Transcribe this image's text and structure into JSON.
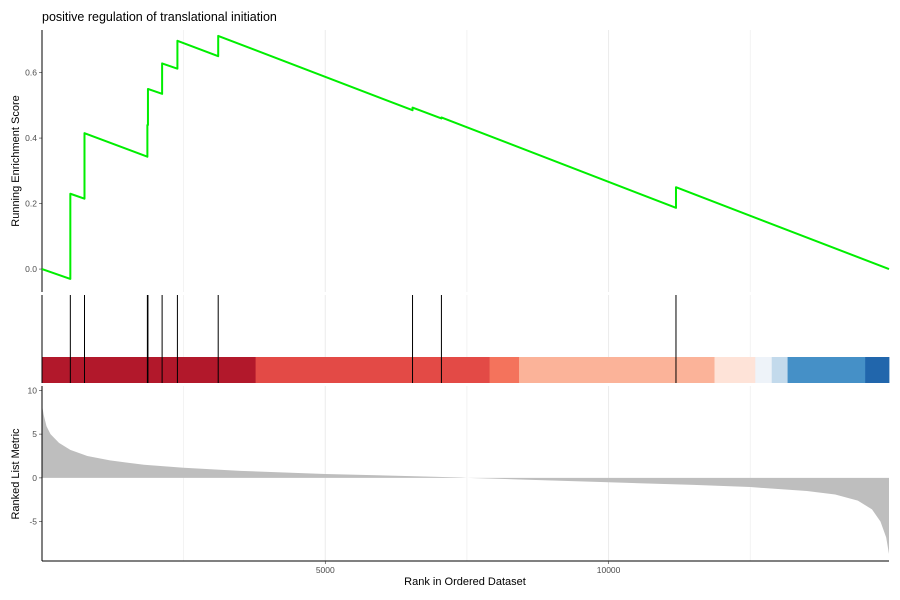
{
  "chart_data": {
    "type": "line",
    "title": "positive regulation of translational initiation",
    "xlabel": "Rank in Ordered Dataset",
    "xlim": [
      0,
      14950
    ],
    "x_ticks": [
      5000,
      10000
    ],
    "x_tick_labels": [
      "5000",
      "10000"
    ],
    "grid": "vertical-only",
    "panels": [
      {
        "name": "running-enrichment",
        "ylabel": "Running Enrichment Score",
        "ylim": [
          -0.07,
          0.73
        ],
        "y_ticks": [
          0.0,
          0.2,
          0.4,
          0.6
        ],
        "y_tick_labels": [
          "0.0",
          "0.2",
          "0.4",
          "0.6"
        ],
        "line_color": "#00ee00",
        "points": [
          [
            0,
            0.0
          ],
          [
            500,
            -0.03
          ],
          [
            500,
            0.23
          ],
          [
            750,
            0.215
          ],
          [
            750,
            0.415
          ],
          [
            1860,
            0.343
          ],
          [
            1860,
            0.44
          ],
          [
            1870,
            0.44
          ],
          [
            1870,
            0.55
          ],
          [
            2120,
            0.535
          ],
          [
            2120,
            0.628
          ],
          [
            2390,
            0.612
          ],
          [
            2390,
            0.697
          ],
          [
            3110,
            0.65
          ],
          [
            3110,
            0.712
          ],
          [
            6540,
            0.485
          ],
          [
            6540,
            0.493
          ],
          [
            7050,
            0.46
          ],
          [
            7050,
            0.463
          ],
          [
            11190,
            0.187
          ],
          [
            11190,
            0.25
          ],
          [
            14950,
            0.0
          ]
        ]
      },
      {
        "name": "gene-hits",
        "hit_positions": [
          500,
          750,
          1860,
          1870,
          2120,
          2390,
          3110,
          6540,
          7050,
          11190
        ],
        "color_bands": [
          {
            "from": 0,
            "to": 3770,
            "color": "#b2182b"
          },
          {
            "from": 3770,
            "to": 7900,
            "color": "#e34a46"
          },
          {
            "from": 7900,
            "to": 8420,
            "color": "#f4735c"
          },
          {
            "from": 8420,
            "to": 11870,
            "color": "#fbb399"
          },
          {
            "from": 11870,
            "to": 12590,
            "color": "#fee3d8"
          },
          {
            "from": 12590,
            "to": 12880,
            "color": "#eef3f9"
          },
          {
            "from": 12880,
            "to": 13160,
            "color": "#c3daec"
          },
          {
            "from": 13160,
            "to": 14530,
            "color": "#4590c7"
          },
          {
            "from": 14530,
            "to": 14950,
            "color": "#2166ac"
          }
        ]
      },
      {
        "name": "ranked-metric",
        "ylabel": "Ranked List Metric",
        "ylim": [
          -9.5,
          10.5
        ],
        "y_ticks": [
          -5,
          0,
          5,
          10
        ],
        "y_tick_labels": [
          "-5",
          "0",
          "5",
          "10"
        ],
        "fill_color": "#bebebe",
        "curve": [
          [
            0,
            8.3
          ],
          [
            30,
            7.2
          ],
          [
            80,
            5.9
          ],
          [
            150,
            5.0
          ],
          [
            300,
            4.0
          ],
          [
            500,
            3.2
          ],
          [
            800,
            2.5
          ],
          [
            1200,
            2.0
          ],
          [
            1800,
            1.5
          ],
          [
            2500,
            1.15
          ],
          [
            3500,
            0.8
          ],
          [
            5000,
            0.45
          ],
          [
            6500,
            0.2
          ],
          [
            7400,
            0.05
          ],
          [
            7500,
            0.0
          ],
          [
            8500,
            -0.2
          ],
          [
            10000,
            -0.5
          ],
          [
            11500,
            -0.8
          ],
          [
            12500,
            -1.05
          ],
          [
            13500,
            -1.5
          ],
          [
            14000,
            -1.9
          ],
          [
            14400,
            -2.6
          ],
          [
            14650,
            -3.6
          ],
          [
            14800,
            -5.0
          ],
          [
            14900,
            -6.8
          ],
          [
            14950,
            -8.7
          ]
        ]
      }
    ]
  }
}
